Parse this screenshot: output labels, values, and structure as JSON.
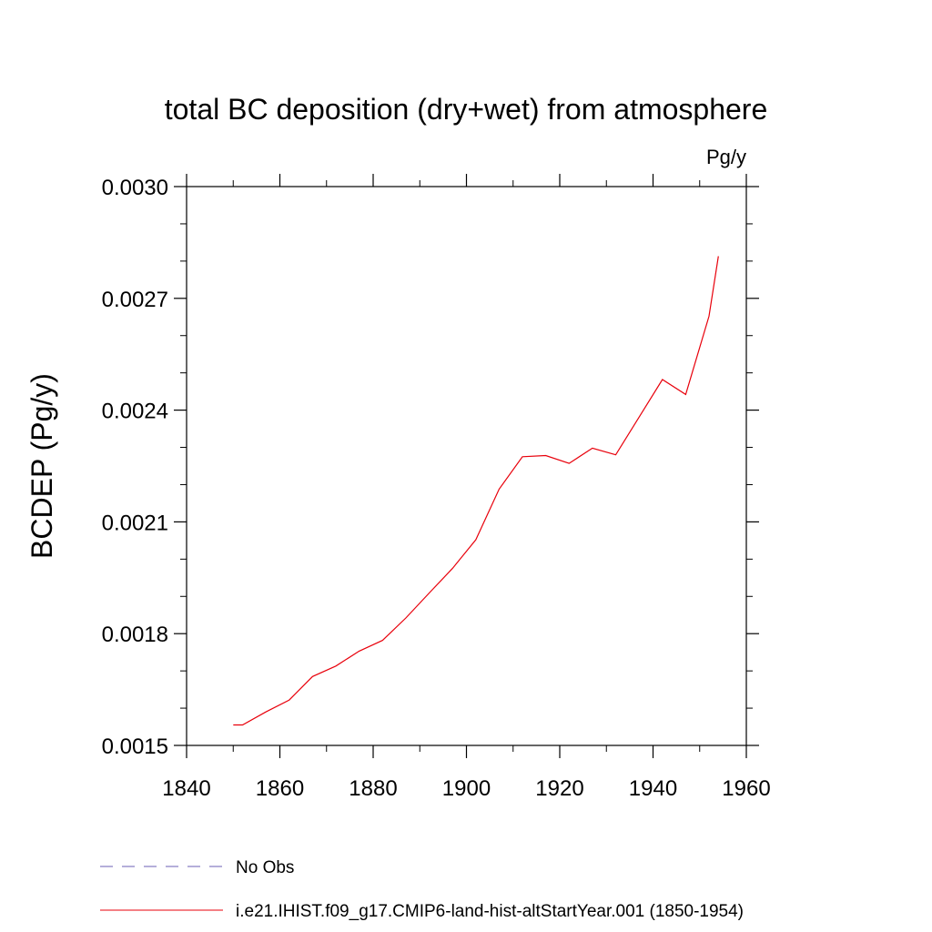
{
  "chart_data": {
    "type": "line",
    "title": "total BC deposition (dry+wet) from atmosphere",
    "units_label": "Pg/y",
    "ylabel": "BCDEP  (Pg/y)",
    "xlabel": "",
    "xlim": [
      1840,
      1960
    ],
    "ylim": [
      0.0015,
      0.003
    ],
    "x_ticks": [
      1840,
      1860,
      1880,
      1900,
      1920,
      1940,
      1960
    ],
    "x_tick_labels": [
      "1840",
      "1860",
      "1880",
      "1900",
      "1920",
      "1940",
      "1960"
    ],
    "y_ticks": [
      0.0015,
      0.0018,
      0.0021,
      0.0024,
      0.0027,
      0.003
    ],
    "y_tick_labels": [
      "0.0015",
      "0.0018",
      "0.0021",
      "0.0024",
      "0.0027",
      "0.0030"
    ],
    "grid": false,
    "legend_position": "bottom",
    "series": [
      {
        "name": "No Obs",
        "color": "#6b5fb5",
        "dash": "dashed",
        "x": [],
        "y": []
      },
      {
        "name": "i.e21.IHIST.f09_g17.CMIP6-land-hist-altStartYear.001 (1850-1954)",
        "color": "#e8000b",
        "dash": "solid",
        "x": [
          1850,
          1852,
          1857,
          1862,
          1867,
          1872,
          1877,
          1882,
          1887,
          1892,
          1897,
          1902,
          1907,
          1912,
          1917,
          1922,
          1927,
          1932,
          1937,
          1942,
          1947,
          1952,
          1954
        ],
        "y": [
          0.001555,
          0.001555,
          0.00159,
          0.001622,
          0.001685,
          0.001713,
          0.001753,
          0.001782,
          0.001842,
          0.001909,
          0.001975,
          0.002052,
          0.002188,
          0.002275,
          0.002278,
          0.002257,
          0.002298,
          0.00228,
          0.002381,
          0.002482,
          0.002442,
          0.002652,
          0.002813
        ]
      }
    ]
  }
}
